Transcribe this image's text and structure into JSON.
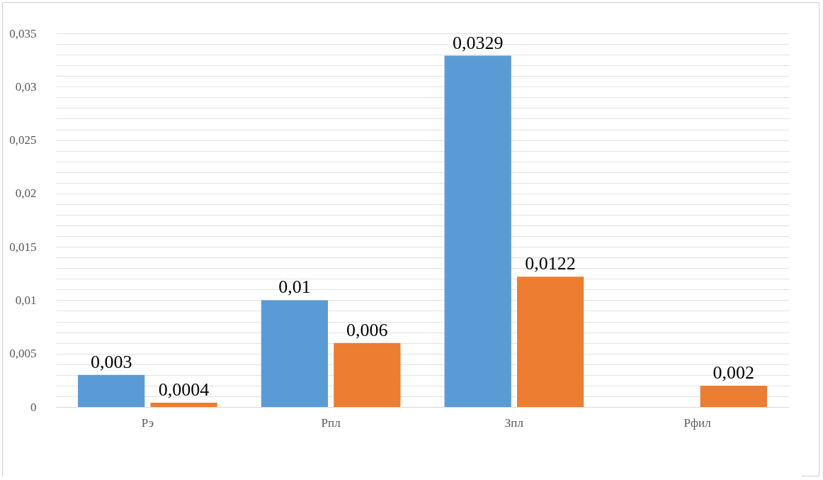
{
  "chart_data": {
    "type": "bar",
    "categories": [
      "Рэ",
      "Рпл",
      "Зпл",
      "Рфил"
    ],
    "series": [
      {
        "color": "#5b9bd5",
        "values": [
          0.003,
          0.01,
          0.0329,
          null
        ],
        "value_labels": [
          "0,003",
          "0,01",
          "0,0329",
          null
        ]
      },
      {
        "color": "#ed7d31",
        "values": [
          0.0004,
          0.006,
          0.0122,
          0.002
        ],
        "value_labels": [
          "0,0004",
          "0,006",
          "0,0122",
          "0,002"
        ]
      }
    ],
    "ylim": [
      0,
      0.035
    ],
    "yticks": [
      {
        "value": 0,
        "label": "0"
      },
      {
        "value": 0.001,
        "label": null
      },
      {
        "value": 0.002,
        "label": null
      },
      {
        "value": 0.003,
        "label": null
      },
      {
        "value": 0.004,
        "label": null
      },
      {
        "value": 0.005,
        "label": "0,005"
      },
      {
        "value": 0.006,
        "label": null
      },
      {
        "value": 0.007,
        "label": null
      },
      {
        "value": 0.008,
        "label": null
      },
      {
        "value": 0.009,
        "label": null
      },
      {
        "value": 0.01,
        "label": "0,01"
      },
      {
        "value": 0.011,
        "label": null
      },
      {
        "value": 0.012,
        "label": null
      },
      {
        "value": 0.013,
        "label": null
      },
      {
        "value": 0.014,
        "label": null
      },
      {
        "value": 0.015,
        "label": "0,015"
      },
      {
        "value": 0.016,
        "label": null
      },
      {
        "value": 0.017,
        "label": null
      },
      {
        "value": 0.018,
        "label": null
      },
      {
        "value": 0.019,
        "label": null
      },
      {
        "value": 0.02,
        "label": "0,02"
      },
      {
        "value": 0.021,
        "label": null
      },
      {
        "value": 0.022,
        "label": null
      },
      {
        "value": 0.023,
        "label": null
      },
      {
        "value": 0.024,
        "label": null
      },
      {
        "value": 0.025,
        "label": "0,025"
      },
      {
        "value": 0.026,
        "label": null
      },
      {
        "value": 0.027,
        "label": null
      },
      {
        "value": 0.028,
        "label": null
      },
      {
        "value": 0.029,
        "label": null
      },
      {
        "value": 0.03,
        "label": "0,03"
      },
      {
        "value": 0.031,
        "label": null
      },
      {
        "value": 0.032,
        "label": null
      },
      {
        "value": 0.033,
        "label": null
      },
      {
        "value": 0.034,
        "label": null
      },
      {
        "value": 0.035,
        "label": "0,035"
      }
    ],
    "grid": true
  }
}
